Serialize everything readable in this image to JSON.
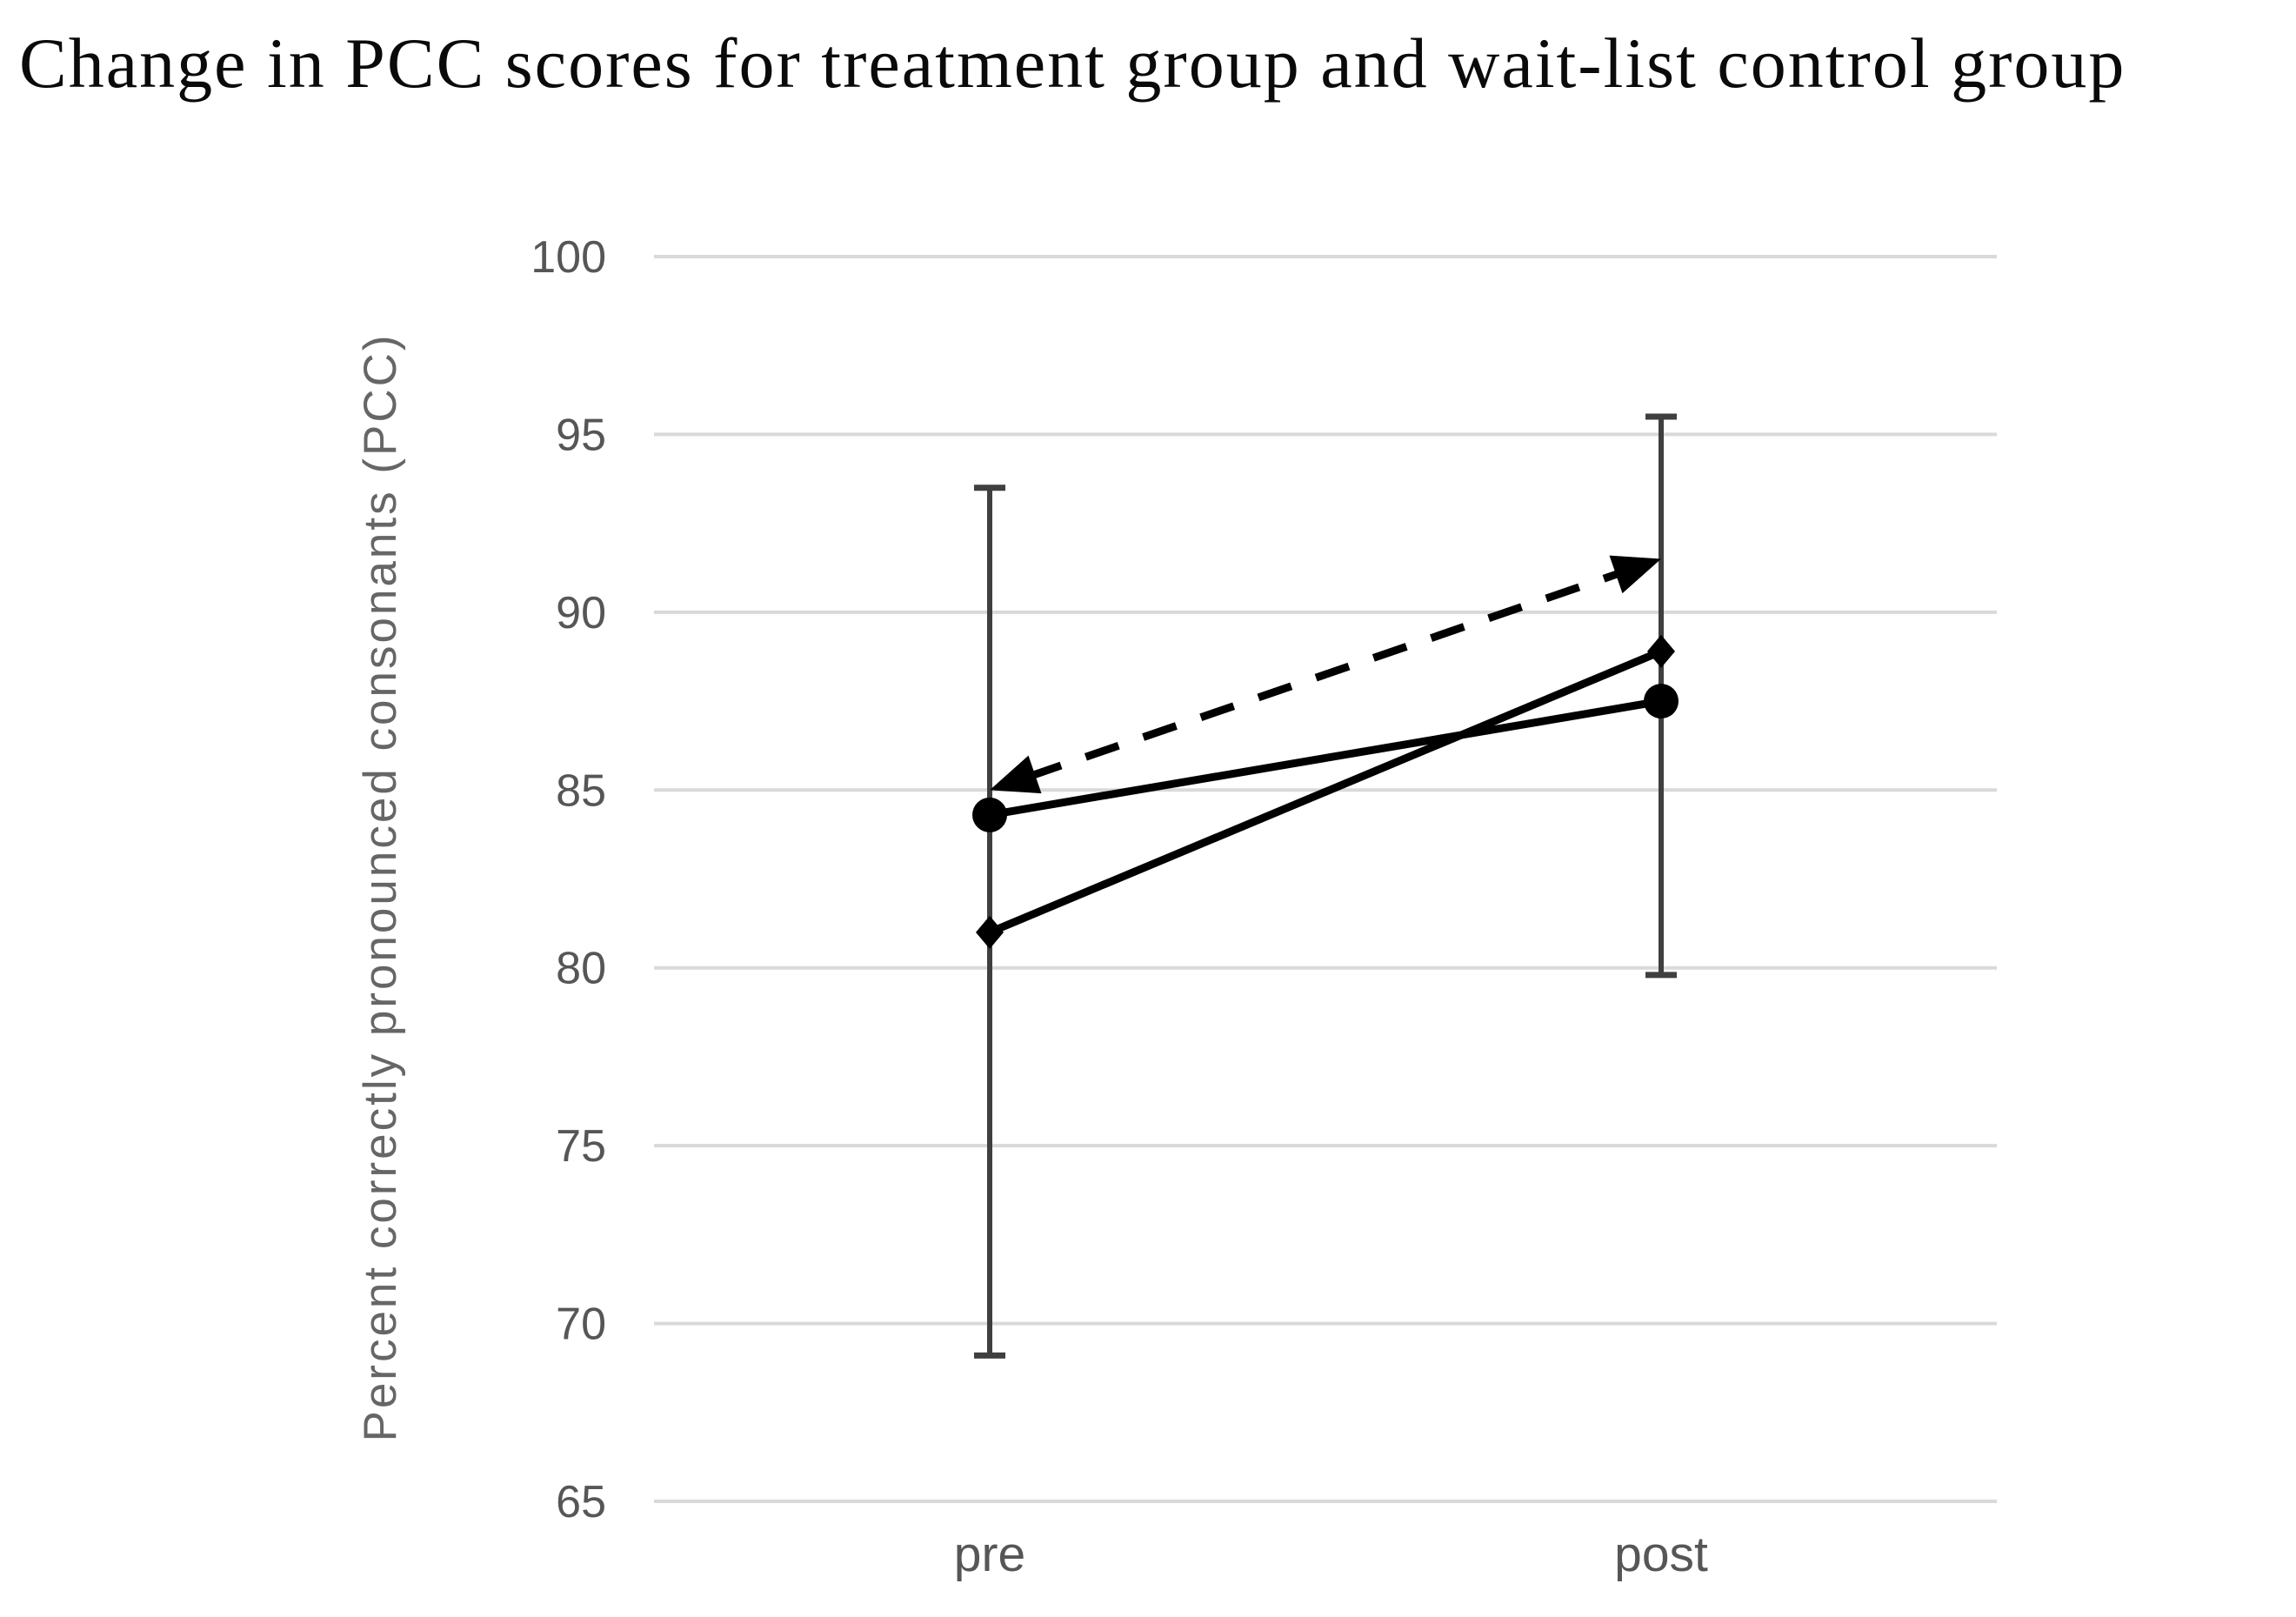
{
  "chart_data": {
    "type": "line",
    "title": "Change in PCC scores for treatment group and wait-list control group",
    "ylabel": "Percent correctly pronounced consonants (PCC)",
    "xlabel": "",
    "categories": [
      "pre",
      "post"
    ],
    "ylim": [
      65,
      100
    ],
    "yticks": [
      100,
      95,
      90,
      85,
      80,
      75,
      70,
      65
    ],
    "grid": "horizontal",
    "legend": "none",
    "series": [
      {
        "id": "solid-circle-line",
        "marker": "circle",
        "line": "solid",
        "arrows": "none",
        "values": [
          84.3,
          87.5
        ]
      },
      {
        "id": "solid-diamond-line",
        "marker": "diamond",
        "line": "solid",
        "arrows": "none",
        "values": [
          81.0,
          88.9
        ]
      },
      {
        "id": "dashed-arrow-line",
        "marker": "none",
        "line": "dashed",
        "arrows": "both-ends",
        "values": [
          85.0,
          91.5
        ]
      }
    ],
    "error_bars": [
      {
        "category": "pre",
        "low": 69.1,
        "high": 93.5
      },
      {
        "category": "post",
        "low": 79.8,
        "high": 95.5
      }
    ],
    "colors": {
      "series": "#000000",
      "error_bar": "#3f3f3f",
      "gridline": "#d9d9d9",
      "tick_label": "#565656",
      "category_label": "#565656",
      "axis_label": "#666666",
      "title": "#0a0a0a",
      "background": "#ffffff"
    }
  }
}
